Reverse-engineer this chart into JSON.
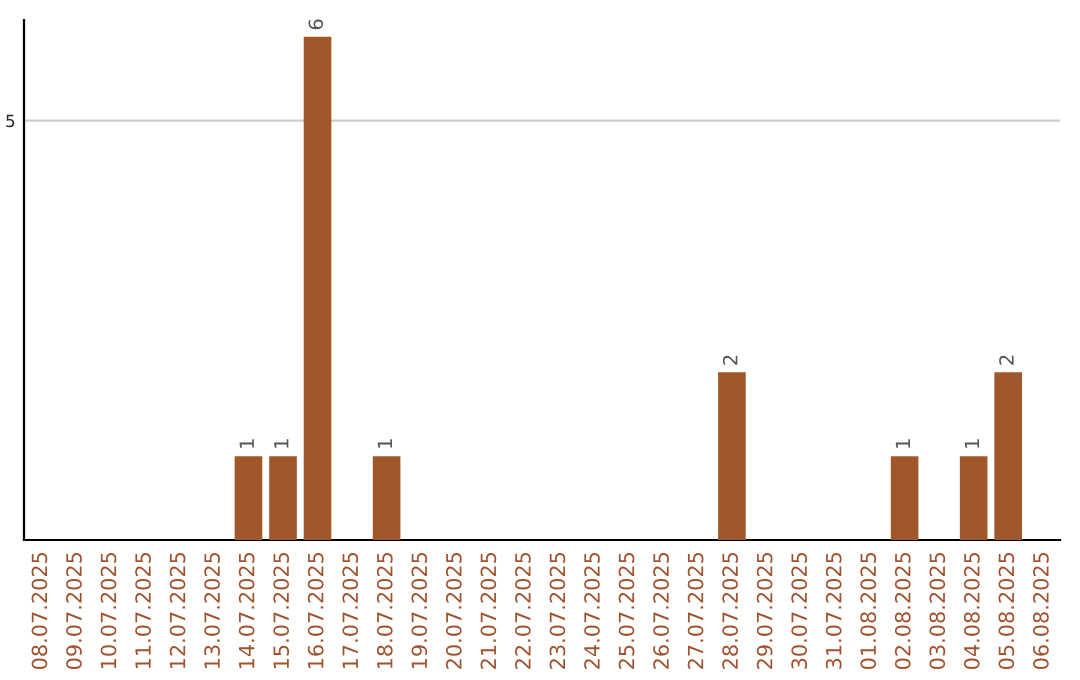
{
  "chart_data": {
    "type": "bar",
    "categories": [
      "08.07.2025",
      "09.07.2025",
      "10.07.2025",
      "11.07.2025",
      "12.07.2025",
      "13.07.2025",
      "14.07.2025",
      "15.07.2025",
      "16.07.2025",
      "17.07.2025",
      "18.07.2025",
      "19.07.2025",
      "20.07.2025",
      "21.07.2025",
      "22.07.2025",
      "23.07.2025",
      "24.07.2025",
      "25.07.2025",
      "26.07.2025",
      "27.07.2025",
      "28.07.2025",
      "29.07.2025",
      "30.07.2025",
      "31.07.2025",
      "01.08.2025",
      "02.08.2025",
      "03.08.2025",
      "04.08.2025",
      "05.08.2025",
      "06.08.2025"
    ],
    "values": [
      0,
      0,
      0,
      0,
      0,
      0,
      1,
      1,
      6,
      0,
      1,
      0,
      0,
      0,
      0,
      0,
      0,
      0,
      0,
      0,
      2,
      0,
      0,
      0,
      0,
      1,
      0,
      1,
      2,
      0
    ],
    "color": "#a0572a",
    "value_labels": [
      null,
      null,
      null,
      null,
      null,
      null,
      "1",
      "1",
      "6",
      null,
      "1",
      null,
      null,
      null,
      null,
      null,
      null,
      null,
      null,
      null,
      "2",
      null,
      null,
      null,
      null,
      "1",
      null,
      "1",
      "2",
      null
    ],
    "ylim": [
      0,
      6.2
    ],
    "yticks": [
      5
    ],
    "grid": "y"
  }
}
